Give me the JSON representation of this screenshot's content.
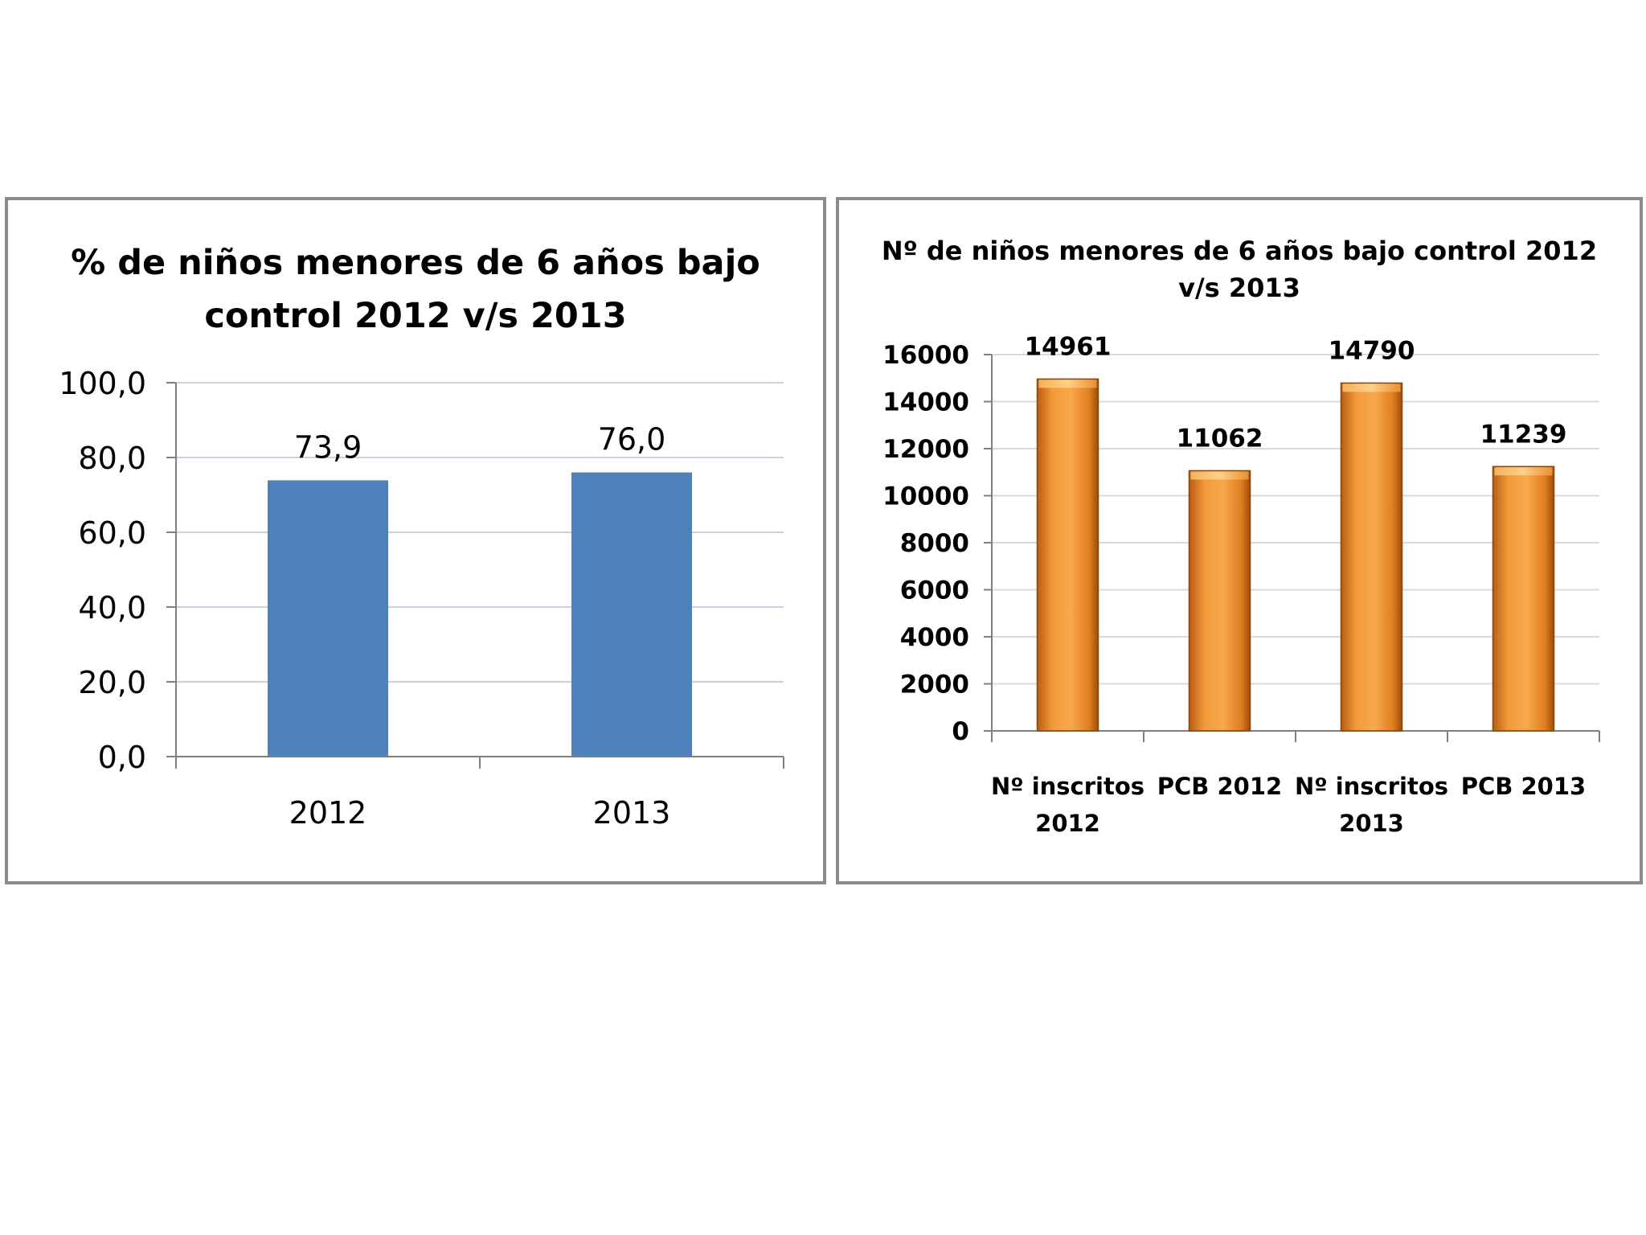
{
  "chart_data": [
    {
      "type": "bar",
      "title": "% de niños menores de 6 años bajo control 2012 v/s 2013",
      "categories": [
        "2012",
        "2013"
      ],
      "values": [
        73.9,
        76.0
      ],
      "value_labels": [
        "73,9",
        "76,0"
      ],
      "y_ticks": [
        "0,0",
        "20,0",
        "40,0",
        "60,0",
        "80,0",
        "100,0"
      ],
      "ylim": [
        0,
        100
      ],
      "grid": true,
      "bar_color": "#4f81bd"
    },
    {
      "type": "bar",
      "title": "Nº de niños menores de 6 años bajo control 2012 v/s 2013",
      "categories": [
        [
          "Nº inscritos",
          "2012"
        ],
        [
          "PCB 2012"
        ],
        [
          "Nº inscritos",
          "2013"
        ],
        [
          "PCB 2013"
        ]
      ],
      "values": [
        14961,
        11062,
        14790,
        11239
      ],
      "value_labels": [
        "14961",
        "11062",
        "14790",
        "11239"
      ],
      "y_ticks": [
        "0",
        "2000",
        "4000",
        "6000",
        "8000",
        "10000",
        "12000",
        "14000",
        "16000"
      ],
      "ylim": [
        0,
        16000
      ],
      "grid": true,
      "bar_color": "#f0922e"
    }
  ]
}
